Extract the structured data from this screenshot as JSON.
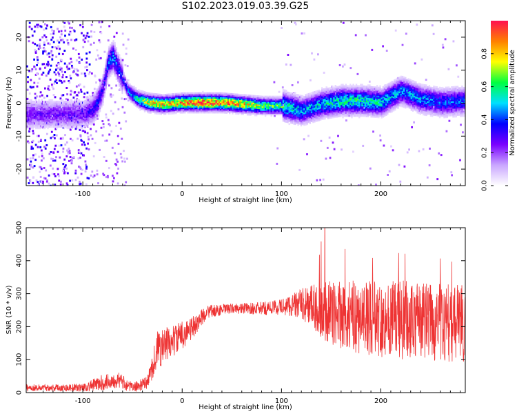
{
  "figure_title": "S102.2023.019.03.39.G25",
  "chart_data": [
    {
      "type": "heatmap",
      "xlabel": "Height of straight line (km)",
      "ylabel": "Frequency (Hz)",
      "xlim": [
        -157,
        285
      ],
      "ylim": [
        -25,
        25
      ],
      "x_ticks": [
        -100,
        0,
        100,
        200
      ],
      "y_ticks": [
        -20,
        -10,
        0,
        10,
        20
      ],
      "colorbar": {
        "label": "Normalized spectral amplitude",
        "range": [
          0,
          1
        ],
        "ticks": [
          0.0,
          0.2,
          0.4,
          0.6,
          0.8
        ],
        "colors": [
          "#ffffff",
          "#c9a6ff",
          "#7a00ff",
          "#0000ff",
          "#00e0ff",
          "#00ff40",
          "#ffff00",
          "#ff8000",
          "#ff1050"
        ]
      },
      "ridge": [
        {
          "x": -100,
          "f": -3.5,
          "a": 0.25
        },
        {
          "x": -90,
          "f": -2.0,
          "a": 0.3
        },
        {
          "x": -85,
          "f": 0.5,
          "a": 0.35
        },
        {
          "x": -80,
          "f": 4.5,
          "a": 0.3
        },
        {
          "x": -75,
          "f": 12.0,
          "a": 0.4
        },
        {
          "x": -70,
          "f": 14.0,
          "a": 0.45
        },
        {
          "x": -63,
          "f": 9.0,
          "a": 0.35
        },
        {
          "x": -55,
          "f": 3.5,
          "a": 0.4
        },
        {
          "x": -45,
          "f": 1.0,
          "a": 0.55
        },
        {
          "x": -35,
          "f": 0.0,
          "a": 0.75
        },
        {
          "x": -20,
          "f": -0.5,
          "a": 0.8
        },
        {
          "x": 0,
          "f": 0.0,
          "a": 0.85
        },
        {
          "x": 20,
          "f": 0.0,
          "a": 0.95
        },
        {
          "x": 40,
          "f": 0.0,
          "a": 0.9
        },
        {
          "x": 60,
          "f": -0.5,
          "a": 0.8
        },
        {
          "x": 80,
          "f": -1.0,
          "a": 0.65
        },
        {
          "x": 100,
          "f": -1.0,
          "a": 0.6
        },
        {
          "x": 120,
          "f": -2.5,
          "a": 0.45
        },
        {
          "x": 140,
          "f": -0.5,
          "a": 0.5
        },
        {
          "x": 160,
          "f": 0.5,
          "a": 0.55
        },
        {
          "x": 180,
          "f": 0.5,
          "a": 0.55
        },
        {
          "x": 200,
          "f": 0.0,
          "a": 0.5
        },
        {
          "x": 220,
          "f": 3.5,
          "a": 0.45
        },
        {
          "x": 240,
          "f": 1.0,
          "a": 0.45
        },
        {
          "x": 260,
          "f": 0.0,
          "a": 0.4
        },
        {
          "x": 285,
          "f": 0.5,
          "a": 0.4
        }
      ]
    },
    {
      "type": "line",
      "xlabel": "Height of straight line (km)",
      "ylabel": "SNR (10 * v/v)",
      "xlim": [
        -157,
        285
      ],
      "ylim": [
        0,
        500
      ],
      "x_ticks": [
        -100,
        0,
        100,
        200
      ],
      "y_ticks": [
        0,
        100,
        200,
        300,
        400,
        500
      ],
      "line_color": "#ee3333",
      "trend": [
        {
          "x": -157,
          "snr": 15,
          "noise": 10
        },
        {
          "x": -100,
          "snr": 15,
          "noise": 12
        },
        {
          "x": -80,
          "snr": 30,
          "noise": 25
        },
        {
          "x": -65,
          "snr": 40,
          "noise": 25
        },
        {
          "x": -50,
          "snr": 15,
          "noise": 15
        },
        {
          "x": -35,
          "snr": 30,
          "noise": 20
        },
        {
          "x": -25,
          "snr": 130,
          "noise": 60
        },
        {
          "x": -10,
          "snr": 155,
          "noise": 50
        },
        {
          "x": 10,
          "snr": 195,
          "noise": 35
        },
        {
          "x": 25,
          "snr": 245,
          "noise": 20
        },
        {
          "x": 50,
          "snr": 255,
          "noise": 15
        },
        {
          "x": 80,
          "snr": 255,
          "noise": 20
        },
        {
          "x": 100,
          "snr": 260,
          "noise": 25
        },
        {
          "x": 120,
          "snr": 270,
          "noise": 45
        },
        {
          "x": 140,
          "snr": 250,
          "noise": 90
        },
        {
          "x": 170,
          "snr": 230,
          "noise": 110
        },
        {
          "x": 220,
          "snr": 220,
          "noise": 120
        },
        {
          "x": 285,
          "snr": 210,
          "noise": 120
        }
      ]
    }
  ]
}
